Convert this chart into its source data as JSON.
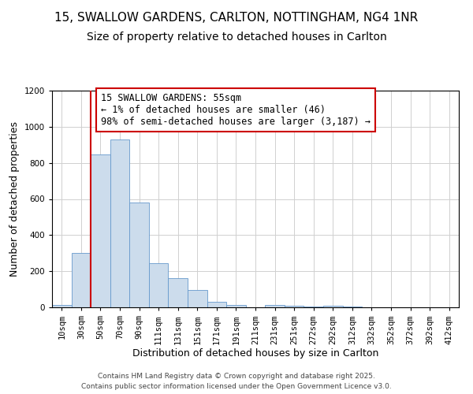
{
  "title": "15, SWALLOW GARDENS, CARLTON, NOTTINGHAM, NG4 1NR",
  "subtitle": "Size of property relative to detached houses in Carlton",
  "xlabel": "Distribution of detached houses by size in Carlton",
  "ylabel": "Number of detached properties",
  "footnote1": "Contains HM Land Registry data © Crown copyright and database right 2025.",
  "footnote2": "Contains public sector information licensed under the Open Government Licence v3.0.",
  "bar_labels": [
    "10sqm",
    "30sqm",
    "50sqm",
    "70sqm",
    "90sqm",
    "111sqm",
    "131sqm",
    "151sqm",
    "171sqm",
    "191sqm",
    "211sqm",
    "231sqm",
    "251sqm",
    "272sqm",
    "292sqm",
    "312sqm",
    "332sqm",
    "352sqm",
    "372sqm",
    "392sqm",
    "412sqm"
  ],
  "bar_values": [
    15,
    300,
    845,
    930,
    580,
    245,
    160,
    95,
    30,
    15,
    0,
    12,
    8,
    5,
    10,
    3,
    0,
    0,
    0,
    0,
    0
  ],
  "bar_color": "#ccdcec",
  "bar_edge_color": "#6699cc",
  "annotation_line1": "15 SWALLOW GARDENS: 55sqm",
  "annotation_line2": "← 1% of detached houses are smaller (46)",
  "annotation_line3": "98% of semi-detached houses are larger (3,187) →",
  "vline_x": 2,
  "vline_color": "#cc0000",
  "box_edge_color": "#cc0000",
  "ylim": [
    0,
    1200
  ],
  "yticks": [
    0,
    200,
    400,
    600,
    800,
    1000,
    1200
  ],
  "background_color": "#ffffff",
  "grid_color": "#d0d0d0",
  "title_fontsize": 11,
  "subtitle_fontsize": 10,
  "annotation_fontsize": 8.5,
  "axis_label_fontsize": 9,
  "tick_fontsize": 7.5,
  "footnote_fontsize": 6.5
}
